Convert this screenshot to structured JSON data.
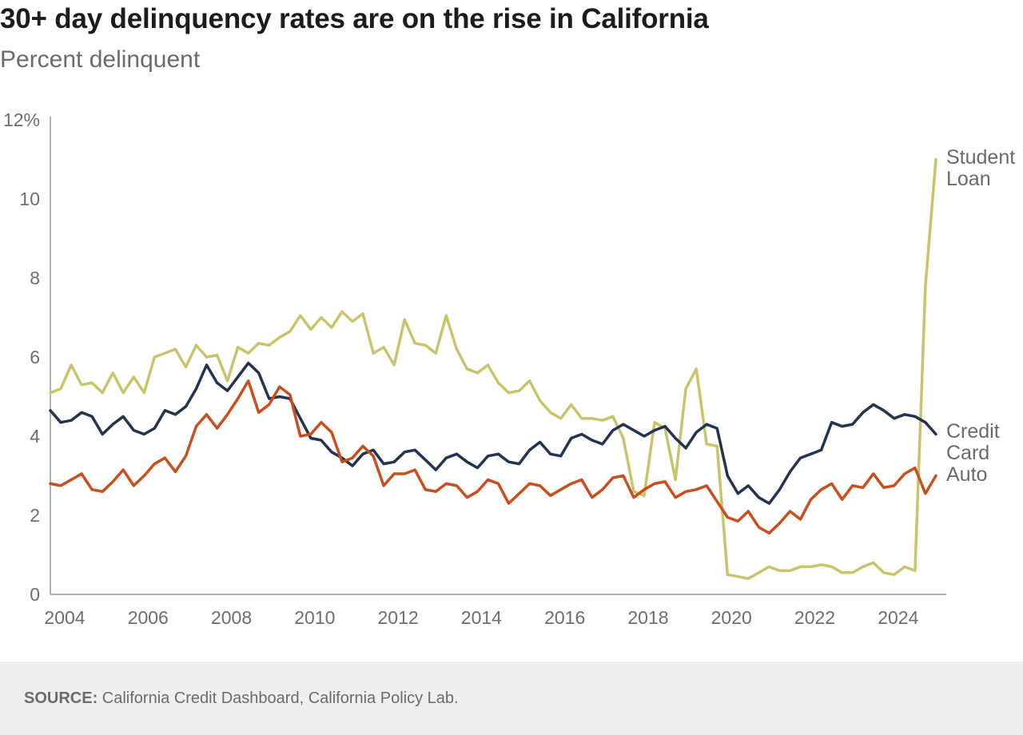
{
  "chart_data": {
    "type": "line",
    "title": "30+ day delinquency rates are on the rise in California",
    "subtitle": "Percent delinquent",
    "xlim": [
      2004,
      2025.5
    ],
    "ylim": [
      0,
      12
    ],
    "x_ticks": [
      "2004",
      "2006",
      "2008",
      "2010",
      "2012",
      "2014",
      "2016",
      "2018",
      "2020",
      "2022",
      "2024"
    ],
    "y_ticks": [
      "0",
      "2",
      "4",
      "6",
      "8",
      "10",
      "12%"
    ],
    "grid": false,
    "legend": "inline-right",
    "x": [
      2004.0,
      2004.25,
      2004.5,
      2004.75,
      2005.0,
      2005.25,
      2005.5,
      2005.75,
      2006.0,
      2006.25,
      2006.5,
      2006.75,
      2007.0,
      2007.25,
      2007.5,
      2007.75,
      2008.0,
      2008.25,
      2008.5,
      2008.75,
      2009.0,
      2009.25,
      2009.5,
      2009.75,
      2010.0,
      2010.25,
      2010.5,
      2010.75,
      2011.0,
      2011.25,
      2011.5,
      2011.75,
      2012.0,
      2012.25,
      2012.5,
      2012.75,
      2013.0,
      2013.25,
      2013.5,
      2013.75,
      2014.0,
      2014.25,
      2014.5,
      2014.75,
      2015.0,
      2015.25,
      2015.5,
      2015.75,
      2016.0,
      2016.25,
      2016.5,
      2016.75,
      2017.0,
      2017.25,
      2017.5,
      2017.75,
      2018.0,
      2018.25,
      2018.5,
      2018.75,
      2019.0,
      2019.25,
      2019.5,
      2019.75,
      2020.0,
      2020.25,
      2020.5,
      2020.75,
      2021.0,
      2021.25,
      2021.5,
      2021.75,
      2022.0,
      2022.25,
      2022.5,
      2022.75,
      2023.0,
      2023.25,
      2023.5,
      2023.75,
      2024.0,
      2024.25,
      2024.5,
      2024.75,
      2025.0,
      2025.25
    ],
    "series": [
      {
        "name": "Student Loan",
        "label_lines": [
          "Student",
          "Loan"
        ],
        "color": "#c9c46c",
        "values": [
          5.1,
          5.2,
          5.8,
          5.3,
          5.35,
          5.1,
          5.6,
          5.1,
          5.5,
          5.1,
          6.0,
          6.1,
          6.2,
          5.75,
          6.3,
          6.0,
          6.05,
          5.4,
          6.25,
          6.1,
          6.35,
          6.3,
          6.5,
          6.65,
          7.05,
          6.7,
          7.0,
          6.75,
          7.15,
          6.9,
          7.1,
          6.1,
          6.25,
          5.8,
          6.95,
          6.35,
          6.3,
          6.1,
          7.05,
          6.2,
          5.7,
          5.6,
          5.8,
          5.35,
          5.1,
          5.15,
          5.4,
          4.9,
          4.6,
          4.45,
          4.8,
          4.45,
          4.45,
          4.4,
          4.5,
          3.95,
          2.6,
          2.5,
          4.35,
          4.2,
          2.9,
          5.2,
          5.7,
          3.8,
          3.75,
          0.5,
          0.45,
          0.4,
          0.55,
          0.7,
          0.6,
          0.6,
          0.7,
          0.7,
          0.75,
          0.7,
          0.55,
          0.55,
          0.7,
          0.8,
          0.55,
          0.5,
          0.7,
          0.6,
          7.8,
          11.0
        ]
      },
      {
        "name": "Credit Card",
        "label_lines": [
          "Credit",
          "Card"
        ],
        "color": "#22344f",
        "values": [
          4.65,
          4.35,
          4.4,
          4.6,
          4.5,
          4.05,
          4.3,
          4.5,
          4.15,
          4.05,
          4.2,
          4.65,
          4.55,
          4.75,
          5.2,
          5.8,
          5.35,
          5.15,
          5.5,
          5.85,
          5.6,
          4.95,
          5.0,
          4.95,
          4.45,
          3.95,
          3.9,
          3.6,
          3.45,
          3.25,
          3.55,
          3.65,
          3.3,
          3.35,
          3.6,
          3.65,
          3.4,
          3.15,
          3.45,
          3.55,
          3.35,
          3.2,
          3.5,
          3.55,
          3.35,
          3.3,
          3.65,
          3.85,
          3.55,
          3.5,
          3.95,
          4.05,
          3.9,
          3.8,
          4.15,
          4.3,
          4.15,
          4.0,
          4.15,
          4.25,
          3.95,
          3.7,
          4.1,
          4.3,
          4.2,
          3.0,
          2.55,
          2.75,
          2.45,
          2.3,
          2.65,
          3.1,
          3.45,
          3.55,
          3.65,
          4.35,
          4.25,
          4.3,
          4.6,
          4.8,
          4.65,
          4.45,
          4.55,
          4.5,
          4.35,
          4.05
        ]
      },
      {
        "name": "Auto",
        "label_lines": [
          "Auto"
        ],
        "color": "#c94e1c",
        "values": [
          2.8,
          2.75,
          2.9,
          3.05,
          2.65,
          2.6,
          2.85,
          3.15,
          2.75,
          3.0,
          3.3,
          3.45,
          3.1,
          3.5,
          4.25,
          4.55,
          4.2,
          4.55,
          4.95,
          5.4,
          4.6,
          4.8,
          5.25,
          5.05,
          4.0,
          4.05,
          4.35,
          4.1,
          3.35,
          3.45,
          3.75,
          3.5,
          2.75,
          3.05,
          3.05,
          3.15,
          2.65,
          2.6,
          2.8,
          2.75,
          2.45,
          2.6,
          2.9,
          2.8,
          2.3,
          2.55,
          2.8,
          2.75,
          2.5,
          2.65,
          2.8,
          2.9,
          2.45,
          2.65,
          2.95,
          3.0,
          2.45,
          2.65,
          2.8,
          2.85,
          2.45,
          2.6,
          2.65,
          2.75,
          2.35,
          1.95,
          1.85,
          2.1,
          1.7,
          1.55,
          1.8,
          2.1,
          1.9,
          2.4,
          2.65,
          2.8,
          2.4,
          2.75,
          2.7,
          3.05,
          2.7,
          2.75,
          3.05,
          3.2,
          2.55,
          3.0
        ]
      }
    ]
  },
  "footer": {
    "source_label": "SOURCE:",
    "source_text": " California Credit Dashboard, California Policy Lab."
  }
}
